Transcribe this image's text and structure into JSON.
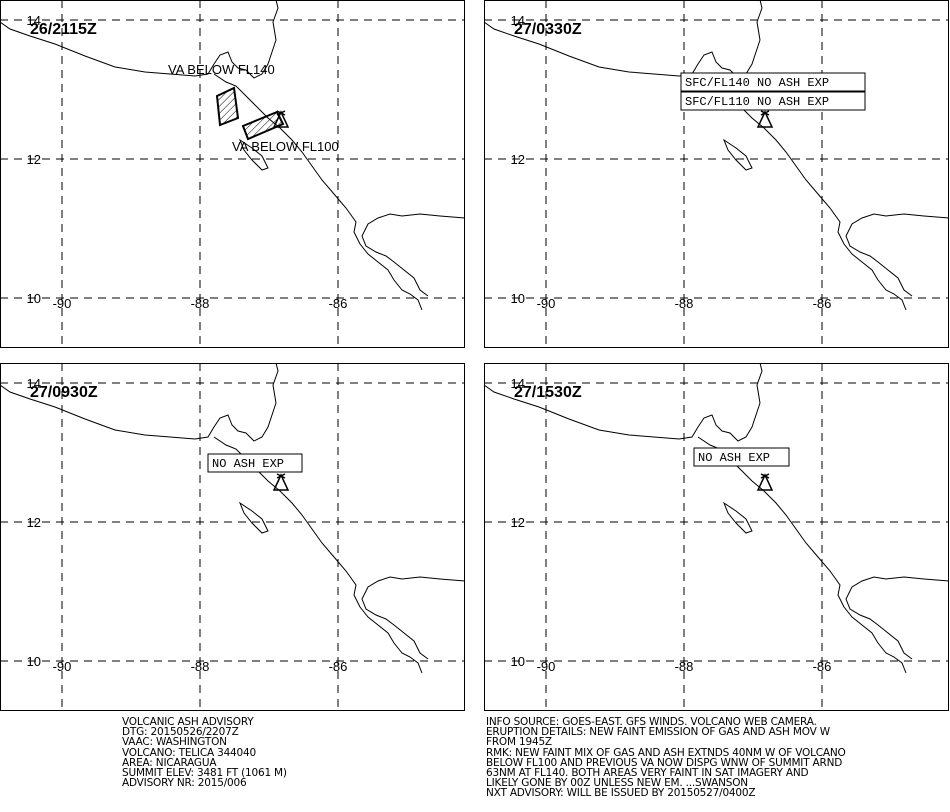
{
  "map": {
    "lat_labels": [
      14,
      12,
      10
    ],
    "lon_labels": [
      -90,
      -88,
      -86
    ]
  },
  "panels": [
    {
      "time": "26/2115Z",
      "labels": [
        "VA BELOW FL140",
        "VA BELOW FL100"
      ]
    },
    {
      "time": "27/0330Z",
      "labels": [
        "SFC/FL140 NO ASH EXP",
        "SFC/FL110 NO ASH EXP"
      ]
    },
    {
      "time": "27/0930Z",
      "labels": [
        "NO ASH EXP"
      ]
    },
    {
      "time": "27/1530Z",
      "labels": [
        "NO ASH EXP"
      ]
    }
  ],
  "footer": {
    "left": [
      "VOLCANIC ASH ADVISORY",
      "DTG: 20150526/2207Z",
      "VAAC: WASHINGTON",
      "VOLCANO: TELICA 344040",
      "AREA: NICARAGUA",
      "SUMMIT ELEV: 3481 FT (1061 M)",
      "ADVISORY NR: 2015/006"
    ],
    "right": [
      "INFO SOURCE: GOES-EAST. GFS WINDS. VOLCANO WEB CAMERA.",
      "ERUPTION DETAILS: NEW FAINT EMISSION OF GAS AND ASH MOV W",
      "FROM 1945Z",
      "RMK: NEW FAINT MIX OF GAS AND ASH EXTNDS 40NM W OF VOLCANO",
      "BELOW FL100 AND PREVIOUS VA NOW DISPG WNW OF SUMMIT ARND",
      "63NM AT FL140. BOTH AREAS VERY FAINT IN SAT IMAGERY AND",
      "LIKELY GONE BY 00Z UNLESS NEW EM. ...SWANSON",
      "NXT ADVISORY: WILL BE ISSUED BY 20150527/0400Z"
    ]
  }
}
